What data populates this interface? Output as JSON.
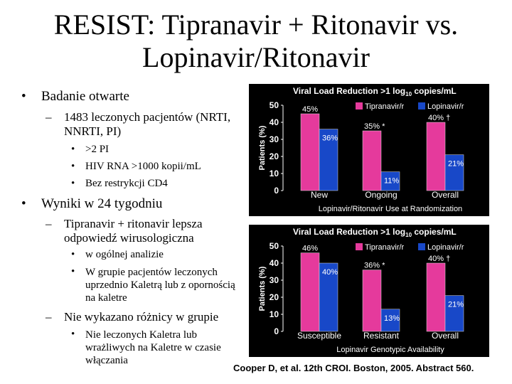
{
  "slide": {
    "title_line1": "RESIST: Tipranavir + Ritonavir vs.",
    "title_line2": "Lopinavir/Ritonavir",
    "bullets": {
      "b1": "Badanie otwarte",
      "b1_1": "1483 leczonych pacjentów (NRTI, NNRTI, PI)",
      "b1_1_1": ">2 PI",
      "b1_1_2": "HIV RNA >1000 kopii/mL",
      "b1_1_3": "Bez restrykcji CD4",
      "b2": "Wyniki w 24 tygodniu",
      "b2_1": "Tipranavir + ritonavir lepsza odpowiedź wirusologiczna",
      "b2_1_1": "w ogólnej analizie",
      "b2_1_2": "W grupie pacjentów leczonych uprzednio Kaletrą lub z opornością na kaletre",
      "b2_2": "Nie wykazano różnicy w grupie",
      "b2_2_1": "Nie leczonych Kaletra lub wrażliwych na Kaletre w czasie włączania"
    },
    "citation": "Cooper D, et al. 12th CROI. Boston, 2005. Abstract 560.",
    "colors": {
      "chart_bg": "#000000",
      "tipranavir": "#e53a9c",
      "lopinavir": "#1848c8",
      "text": "#ffffff"
    }
  },
  "chart_data": [
    {
      "type": "bar",
      "title": "Viral Load Reduction >1 log10 copies/mL",
      "ylabel": "Patients (%)",
      "xlabel": "Lopinavir/Ritonavir Use at Randomization",
      "ylim": [
        0,
        50
      ],
      "yticks": [
        "0",
        "10",
        "20",
        "30",
        "40",
        "50"
      ],
      "categories": [
        "New",
        "Ongoing",
        "Overall"
      ],
      "series": [
        {
          "name": "Tipranavir/r",
          "values": [
            45,
            35,
            40
          ]
        },
        {
          "name": "Lopinavir/r",
          "values": [
            36,
            11,
            21
          ]
        }
      ],
      "data_labels": [
        [
          "45%",
          "35% *",
          "40% †"
        ],
        [
          "36%",
          "11%",
          "21%"
        ]
      ],
      "legend": "top-right"
    },
    {
      "type": "bar",
      "title": "Viral Load Reduction >1 log10 copies/mL",
      "ylabel": "Patients (%)",
      "xlabel": "Lopinavir Genotypic Availability",
      "ylim": [
        0,
        50
      ],
      "yticks": [
        "0",
        "10",
        "20",
        "30",
        "40",
        "50"
      ],
      "categories": [
        "Susceptible",
        "Resistant",
        "Overall"
      ],
      "series": [
        {
          "name": "Tipranavir/r",
          "values": [
            46,
            36,
            40
          ]
        },
        {
          "name": "Lopinavir/r",
          "values": [
            40,
            13,
            21
          ]
        }
      ],
      "data_labels": [
        [
          "46%",
          "36% *",
          "40% †"
        ],
        [
          "40%",
          "13%",
          "21%"
        ]
      ],
      "legend": "top-right"
    }
  ]
}
